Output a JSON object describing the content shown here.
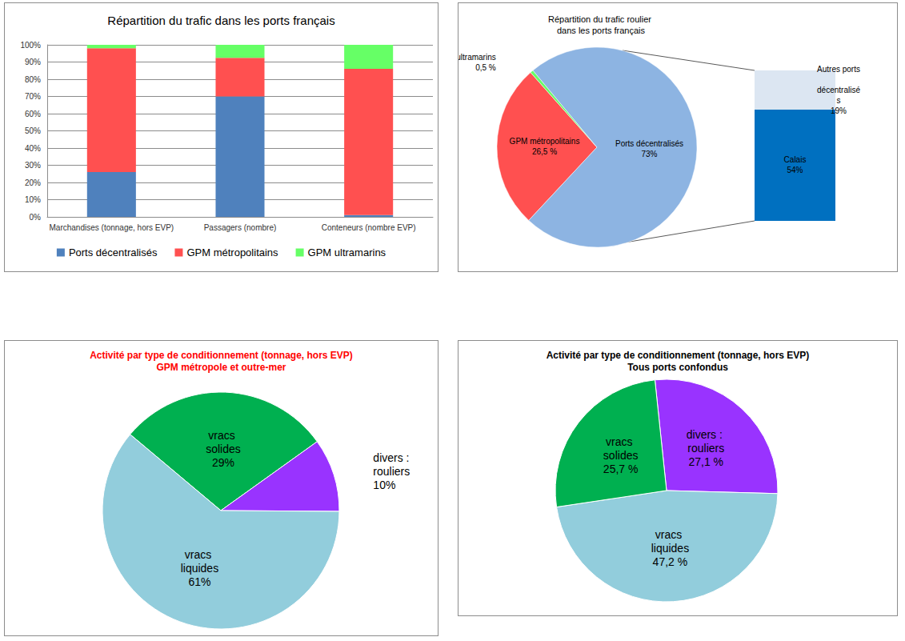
{
  "chart_data": [
    {
      "type": "bar",
      "title": "Répartition du trafic dans les ports français",
      "categories": [
        "Marchandises (tonnage, hors EVP)",
        "Passagers (nombre)",
        "Conteneurs (nombre EVP)"
      ],
      "series": [
        {
          "name": "Ports décentralisés",
          "color": "#4f81bd",
          "values": [
            26,
            70,
            1
          ]
        },
        {
          "name": "GPM métropolitains",
          "color": "#ff5050",
          "values": [
            72,
            22.5,
            85
          ]
        },
        {
          "name": "GPM ultramarins",
          "color": "#66ff66",
          "values": [
            2,
            7.5,
            14
          ]
        }
      ],
      "stacked": true,
      "ylim": [
        0,
        100
      ],
      "yticks": [
        {
          "value": 0,
          "label": "0%"
        },
        {
          "value": 10,
          "label": "10%"
        },
        {
          "value": 20,
          "label": "20%"
        },
        {
          "value": 30,
          "label": "30%"
        },
        {
          "value": 40,
          "label": "40%"
        },
        {
          "value": 50,
          "label": "50%"
        },
        {
          "value": 60,
          "label": "60%"
        },
        {
          "value": 70,
          "label": "70%"
        },
        {
          "value": 80,
          "label": "80%"
        },
        {
          "value": 90,
          "label": "90%"
        },
        {
          "value": 100,
          "label": "100%"
        }
      ],
      "grid": true,
      "legend": "bottom"
    },
    {
      "type": "pie",
      "title": "Répartition du trafic roulier dans les ports français",
      "categories": [
        "GPM métropolitains",
        "GPM ultramarins",
        "Ports décentralisés"
      ],
      "values": [
        26.5,
        0.5,
        73
      ],
      "value_labels": [
        "26,5 %",
        "0,5 %",
        "73%"
      ],
      "colors": [
        "#ff5050",
        "#66ff66",
        "#8db4e2"
      ],
      "data_labels": true
    },
    {
      "type": "bar",
      "categories": [
        null
      ],
      "series": [
        {
          "name": "Calais",
          "color": "#0070c0",
          "values": [
            54
          ],
          "value_labels": [
            "54%"
          ]
        },
        {
          "name": "Autres ports décentralisés",
          "color": "#dce6f2",
          "values": [
            19
          ],
          "value_labels": [
            "19%"
          ]
        }
      ],
      "stacked": true,
      "ylim": [
        0,
        73
      ],
      "yticks": [],
      "tick_labels": false,
      "data_labels": true
    },
    {
      "type": "pie",
      "title": "Activité par type de conditionnement (tonnage, hors EVP)",
      "subtitle": "GPM métropole et outre-mer",
      "categories": [
        "vracs solides",
        "divers : rouliers",
        "vracs liquides"
      ],
      "values": [
        29,
        10,
        61
      ],
      "value_labels": [
        "29%",
        "10%",
        "61%"
      ],
      "colors": [
        "#00b050",
        "#9933ff",
        "#92cddc"
      ],
      "data_labels": true
    },
    {
      "type": "pie",
      "title": "Activité par type de conditionnement (tonnage, hors EVP)",
      "subtitle": "Tous ports confondus",
      "categories": [
        "divers : rouliers",
        "vracs liquides",
        "vracs solides"
      ],
      "values": [
        27.1,
        47.2,
        25.7
      ],
      "value_labels": [
        "27,1 %",
        "47,2 %",
        "25,7 %"
      ],
      "colors": [
        "#9933ff",
        "#92cddc",
        "#00b050"
      ],
      "data_labels": true
    }
  ]
}
